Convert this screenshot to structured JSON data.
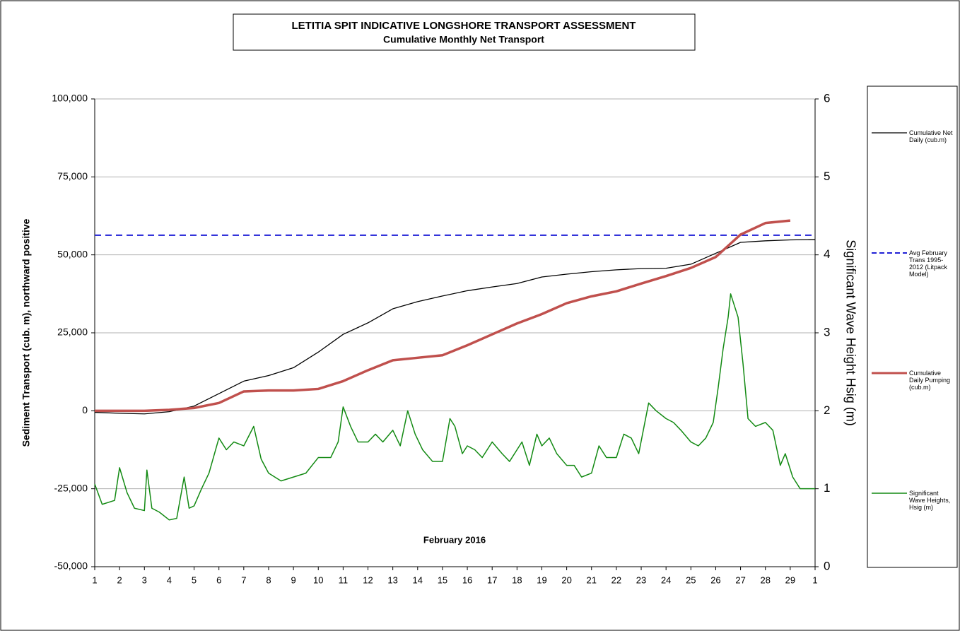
{
  "chart_data": {
    "type": "line",
    "title": "LETITIA SPIT INDICATIVE LONGSHORE TRANSPORT ASSESSMENT",
    "subtitle": "Cumulative Monthly Net Transport",
    "xlabel": "February 2016",
    "ylabel": "Sediment  Transport  (cub. m), northward positive",
    "y2label": "Significant Wave Height Hsig  (m)",
    "x": [
      1,
      2,
      3,
      4,
      5,
      6,
      7,
      8,
      9,
      10,
      11,
      12,
      13,
      14,
      15,
      16,
      17,
      18,
      19,
      20,
      21,
      22,
      23,
      24,
      25,
      26,
      27,
      28,
      29,
      30
    ],
    "xlim": [
      1,
      30
    ],
    "xticks": [
      1,
      2,
      3,
      4,
      5,
      6,
      7,
      8,
      9,
      10,
      11,
      12,
      13,
      14,
      15,
      16,
      17,
      18,
      19,
      20,
      21,
      22,
      23,
      24,
      25,
      26,
      27,
      28,
      29,
      {
        "value": 30,
        "label": "1"
      }
    ],
    "ylim": [
      -50000,
      100000
    ],
    "yticks": [
      {
        "value": -50000,
        "label": "-50,000"
      },
      {
        "value": -25000,
        "label": "-25,000"
      },
      0,
      {
        "value": 25000,
        "label": "25,000"
      },
      {
        "value": 50000,
        "label": "50,000"
      },
      {
        "value": 75000,
        "label": "75,000"
      },
      {
        "value": 100000,
        "label": "100,000"
      }
    ],
    "y2lim": [
      0,
      6
    ],
    "y2ticks": [
      0,
      1,
      2,
      3,
      4,
      5,
      6
    ],
    "grid": true,
    "legend": "right",
    "series": [
      {
        "name": "Cumulative Net Daily (cub.m)",
        "color": "#000000",
        "line_width": 1.3,
        "values": [
          -500,
          -800,
          -1000,
          -300,
          1500,
          5500,
          9500,
          11300,
          13800,
          18800,
          24500,
          28200,
          32700,
          35000,
          36800,
          38500,
          39700,
          40800,
          42900,
          43800,
          44600,
          45200,
          45600,
          45700,
          47000,
          50500,
          54000,
          54500,
          54800,
          54900
        ]
      },
      {
        "name": "Avg February Trans 1995-2012 (Litpack Model)",
        "color": "#1f1fd6",
        "line_width": 2,
        "dashed": true,
        "x": [
          1,
          30
        ],
        "values": [
          56300,
          56300
        ]
      },
      {
        "name": "Cumulative Daily Pumping (cub.m)",
        "color": "#c0504d",
        "line_width": 3.5,
        "values": [
          0,
          0,
          0,
          300,
          900,
          2500,
          6200,
          6500,
          6500,
          7000,
          9500,
          13000,
          16200,
          17000,
          17800,
          21000,
          24500,
          28000,
          31000,
          34500,
          36700,
          38300,
          40800,
          43200,
          45800,
          49300,
          56500,
          60200,
          61000,
          null
        ]
      },
      {
        "name": "Significant Wave Heights, Hsig (m)",
        "color": "#138a13",
        "line_width": 1.5,
        "axis": "y2",
        "x": [
          1,
          1.3,
          1.8,
          2,
          2.3,
          2.6,
          3,
          3.1,
          3.3,
          3.6,
          4,
          4.3,
          4.6,
          4.8,
          5,
          5.3,
          5.6,
          6,
          6.3,
          6.6,
          7,
          7.4,
          7.7,
          8,
          8.5,
          9,
          9.5,
          10,
          10.5,
          10.8,
          11,
          11.3,
          11.6,
          12,
          12.3,
          12.6,
          13,
          13.3,
          13.6,
          13.9,
          14.2,
          14.6,
          15,
          15.3,
          15.5,
          15.8,
          16,
          16.3,
          16.6,
          17,
          17.4,
          17.7,
          18,
          18.2,
          18.5,
          18.8,
          19,
          19.3,
          19.6,
          20,
          20.3,
          20.6,
          21,
          21.3,
          21.6,
          22,
          22.3,
          22.6,
          22.9,
          23.3,
          23.6,
          24,
          24.3,
          24.6,
          25,
          25.3,
          25.6,
          25.9,
          26.1,
          26.3,
          26.5,
          26.6,
          26.9,
          27.1,
          27.3,
          27.6,
          28,
          28.3,
          28.6,
          28.8,
          29.1,
          29.4,
          29.7,
          30
        ],
        "values": [
          1.06,
          0.8,
          0.85,
          1.27,
          0.95,
          0.75,
          0.72,
          1.24,
          0.75,
          0.7,
          0.6,
          0.62,
          1.15,
          0.75,
          0.78,
          1.0,
          1.2,
          1.65,
          1.5,
          1.6,
          1.55,
          1.8,
          1.38,
          1.2,
          1.1,
          1.15,
          1.2,
          1.4,
          1.4,
          1.6,
          2.05,
          1.8,
          1.6,
          1.6,
          1.7,
          1.6,
          1.75,
          1.55,
          2.0,
          1.7,
          1.5,
          1.35,
          1.35,
          1.9,
          1.8,
          1.45,
          1.55,
          1.5,
          1.4,
          1.6,
          1.45,
          1.35,
          1.5,
          1.6,
          1.3,
          1.7,
          1.55,
          1.65,
          1.45,
          1.3,
          1.3,
          1.15,
          1.2,
          1.55,
          1.4,
          1.4,
          1.7,
          1.65,
          1.45,
          2.1,
          2.0,
          1.9,
          1.85,
          1.75,
          1.6,
          1.55,
          1.65,
          1.85,
          2.3,
          2.8,
          3.2,
          3.5,
          3.2,
          2.6,
          1.9,
          1.8,
          1.85,
          1.75,
          1.3,
          1.45,
          1.15,
          1.0,
          1.0,
          1.0
        ]
      }
    ]
  }
}
